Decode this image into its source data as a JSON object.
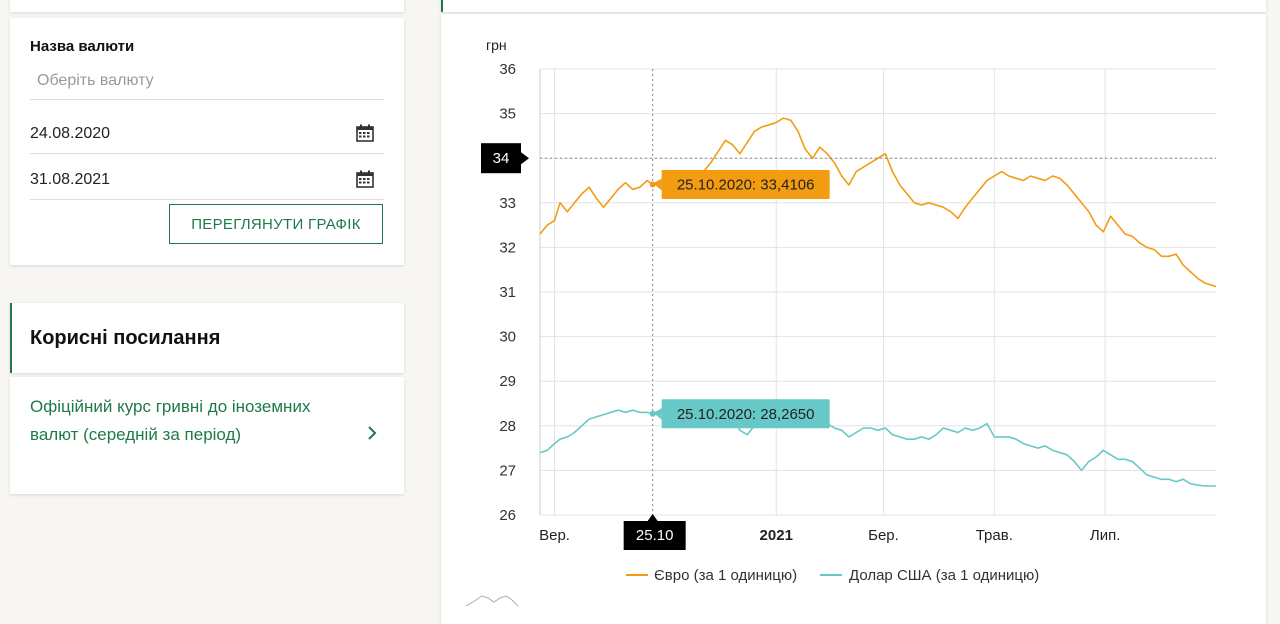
{
  "filters": {
    "currency_label": "Назва валюти",
    "currency_placeholder": "Оберіть валюту",
    "date_from": "24.08.2020",
    "date_to": "31.08.2021",
    "view_button": "ПЕРЕГЛЯНУТИ ГРАФІК"
  },
  "links": {
    "title": "Корисні посилання",
    "items": [
      {
        "label": "Офіційний курс гривні до іноземних валют (середній за період)"
      }
    ]
  },
  "colors": {
    "accent": "#1e7a4a",
    "euro": "#f39c12",
    "usd": "#67c9c7"
  },
  "chart_data": {
    "type": "line",
    "ylabel": "грн",
    "ylim": [
      26,
      36
    ],
    "yticks": [
      "26",
      "27",
      "28",
      "29",
      "30",
      "31",
      "32",
      "33",
      "34",
      "35",
      "36"
    ],
    "x_range": [
      "2020-08-24",
      "2021-08-31"
    ],
    "xticks": [
      {
        "date": "2020-09-01",
        "label": "Вер.",
        "bold": false
      },
      {
        "date": "2021-01-01",
        "label": "2021",
        "bold": true
      },
      {
        "date": "2021-03-01",
        "label": "Бер.",
        "bold": false
      },
      {
        "date": "2021-05-01",
        "label": "Трав.",
        "bold": false
      },
      {
        "date": "2021-07-01",
        "label": "Лип.",
        "bold": false
      }
    ],
    "grid": true,
    "legend_position": "bottom",
    "crosshair": {
      "date": "2020-10-25",
      "x_label": "25.10",
      "y_value": 34,
      "y_label": "34"
    },
    "tooltips": [
      {
        "series": 0,
        "text": "25.10.2020: 33,4106"
      },
      {
        "series": 1,
        "text": "25.10.2020: 28,2650"
      }
    ],
    "series": [
      {
        "name": "Євро (за 1 одиницю)",
        "color": "#f39c12",
        "points": [
          [
            "2020-08-24",
            32.3
          ],
          [
            "2020-08-28",
            32.5
          ],
          [
            "2020-09-01",
            32.6
          ],
          [
            "2020-09-04",
            33.0
          ],
          [
            "2020-09-08",
            32.8
          ],
          [
            "2020-09-12",
            33.0
          ],
          [
            "2020-09-16",
            33.2
          ],
          [
            "2020-09-20",
            33.35
          ],
          [
            "2020-09-24",
            33.1
          ],
          [
            "2020-09-28",
            32.9
          ],
          [
            "2020-10-02",
            33.1
          ],
          [
            "2020-10-06",
            33.3
          ],
          [
            "2020-10-10",
            33.45
          ],
          [
            "2020-10-14",
            33.3
          ],
          [
            "2020-10-18",
            33.35
          ],
          [
            "2020-10-22",
            33.5
          ],
          [
            "2020-10-25",
            33.41
          ],
          [
            "2020-10-29",
            33.5
          ],
          [
            "2020-11-02",
            33.55
          ],
          [
            "2020-11-06",
            33.45
          ],
          [
            "2020-11-10",
            33.35
          ],
          [
            "2020-11-14",
            33.6
          ],
          [
            "2020-11-18",
            33.65
          ],
          [
            "2020-11-22",
            33.7
          ],
          [
            "2020-11-26",
            33.9
          ],
          [
            "2020-11-30",
            34.15
          ],
          [
            "2020-12-04",
            34.4
          ],
          [
            "2020-12-08",
            34.3
          ],
          [
            "2020-12-12",
            34.1
          ],
          [
            "2020-12-16",
            34.35
          ],
          [
            "2020-12-20",
            34.6
          ],
          [
            "2020-12-24",
            34.7
          ],
          [
            "2020-12-28",
            34.75
          ],
          [
            "2021-01-01",
            34.8
          ],
          [
            "2021-01-05",
            34.9
          ],
          [
            "2021-01-09",
            34.85
          ],
          [
            "2021-01-13",
            34.6
          ],
          [
            "2021-01-17",
            34.2
          ],
          [
            "2021-01-21",
            34.0
          ],
          [
            "2021-01-25",
            34.25
          ],
          [
            "2021-01-29",
            34.1
          ],
          [
            "2021-02-02",
            33.9
          ],
          [
            "2021-02-06",
            33.6
          ],
          [
            "2021-02-10",
            33.4
          ],
          [
            "2021-02-14",
            33.7
          ],
          [
            "2021-02-18",
            33.8
          ],
          [
            "2021-02-22",
            33.9
          ],
          [
            "2021-02-26",
            34.0
          ],
          [
            "2021-03-02",
            34.1
          ],
          [
            "2021-03-06",
            33.7
          ],
          [
            "2021-03-10",
            33.4
          ],
          [
            "2021-03-14",
            33.2
          ],
          [
            "2021-03-18",
            33.0
          ],
          [
            "2021-03-22",
            32.95
          ],
          [
            "2021-03-26",
            33.0
          ],
          [
            "2021-03-30",
            32.95
          ],
          [
            "2021-04-03",
            32.9
          ],
          [
            "2021-04-07",
            32.8
          ],
          [
            "2021-04-11",
            32.65
          ],
          [
            "2021-04-15",
            32.9
          ],
          [
            "2021-04-19",
            33.1
          ],
          [
            "2021-04-23",
            33.3
          ],
          [
            "2021-04-27",
            33.5
          ],
          [
            "2021-05-01",
            33.6
          ],
          [
            "2021-05-05",
            33.7
          ],
          [
            "2021-05-09",
            33.6
          ],
          [
            "2021-05-13",
            33.55
          ],
          [
            "2021-05-17",
            33.5
          ],
          [
            "2021-05-21",
            33.6
          ],
          [
            "2021-05-25",
            33.55
          ],
          [
            "2021-05-29",
            33.5
          ],
          [
            "2021-06-02",
            33.6
          ],
          [
            "2021-06-06",
            33.55
          ],
          [
            "2021-06-10",
            33.4
          ],
          [
            "2021-06-14",
            33.2
          ],
          [
            "2021-06-18",
            33.0
          ],
          [
            "2021-06-22",
            32.8
          ],
          [
            "2021-06-26",
            32.5
          ],
          [
            "2021-06-30",
            32.35
          ],
          [
            "2021-07-04",
            32.7
          ],
          [
            "2021-07-08",
            32.5
          ],
          [
            "2021-07-12",
            32.3
          ],
          [
            "2021-07-16",
            32.25
          ],
          [
            "2021-07-20",
            32.1
          ],
          [
            "2021-07-24",
            32.0
          ],
          [
            "2021-07-28",
            31.95
          ],
          [
            "2021-08-01",
            31.8
          ],
          [
            "2021-08-05",
            31.8
          ],
          [
            "2021-08-09",
            31.85
          ],
          [
            "2021-08-13",
            31.6
          ],
          [
            "2021-08-17",
            31.45
          ],
          [
            "2021-08-21",
            31.3
          ],
          [
            "2021-08-25",
            31.2
          ],
          [
            "2021-08-31",
            31.12
          ]
        ]
      },
      {
        "name": "Долар США (за 1 одиницю)",
        "color": "#67c9c7",
        "points": [
          [
            "2020-08-24",
            27.4
          ],
          [
            "2020-08-28",
            27.45
          ],
          [
            "2020-09-01",
            27.6
          ],
          [
            "2020-09-04",
            27.7
          ],
          [
            "2020-09-08",
            27.75
          ],
          [
            "2020-09-12",
            27.85
          ],
          [
            "2020-09-16",
            28.0
          ],
          [
            "2020-09-20",
            28.15
          ],
          [
            "2020-09-24",
            28.2
          ],
          [
            "2020-09-28",
            28.25
          ],
          [
            "2020-10-02",
            28.3
          ],
          [
            "2020-10-06",
            28.35
          ],
          [
            "2020-10-10",
            28.3
          ],
          [
            "2020-10-14",
            28.35
          ],
          [
            "2020-10-18",
            28.3
          ],
          [
            "2020-10-22",
            28.3
          ],
          [
            "2020-10-25",
            28.27
          ],
          [
            "2020-10-29",
            28.35
          ],
          [
            "2020-11-02",
            28.3
          ],
          [
            "2020-11-06",
            28.15
          ],
          [
            "2020-11-10",
            28.2
          ],
          [
            "2020-11-14",
            28.15
          ],
          [
            "2020-11-18",
            28.1
          ],
          [
            "2020-11-22",
            28.05
          ],
          [
            "2020-11-26",
            28.15
          ],
          [
            "2020-11-30",
            28.1
          ],
          [
            "2020-12-04",
            28.0
          ],
          [
            "2020-12-08",
            28.2
          ],
          [
            "2020-12-12",
            27.9
          ],
          [
            "2020-12-16",
            27.8
          ],
          [
            "2020-12-20",
            28.0
          ],
          [
            "2020-12-24",
            28.2
          ],
          [
            "2020-12-28",
            28.3
          ],
          [
            "2021-01-01",
            28.25
          ],
          [
            "2021-01-05",
            28.4
          ],
          [
            "2021-01-09",
            28.3
          ],
          [
            "2021-01-13",
            28.2
          ],
          [
            "2021-01-17",
            28.25
          ],
          [
            "2021-01-21",
            28.3
          ],
          [
            "2021-01-25",
            28.2
          ],
          [
            "2021-01-29",
            28.05
          ],
          [
            "2021-02-02",
            27.95
          ],
          [
            "2021-02-06",
            27.9
          ],
          [
            "2021-02-10",
            27.75
          ],
          [
            "2021-02-14",
            27.85
          ],
          [
            "2021-02-18",
            27.95
          ],
          [
            "2021-02-22",
            27.95
          ],
          [
            "2021-02-26",
            27.9
          ],
          [
            "2021-03-02",
            27.95
          ],
          [
            "2021-03-06",
            27.8
          ],
          [
            "2021-03-10",
            27.75
          ],
          [
            "2021-03-14",
            27.7
          ],
          [
            "2021-03-18",
            27.7
          ],
          [
            "2021-03-22",
            27.75
          ],
          [
            "2021-03-26",
            27.7
          ],
          [
            "2021-03-30",
            27.8
          ],
          [
            "2021-04-03",
            27.95
          ],
          [
            "2021-04-07",
            27.9
          ],
          [
            "2021-04-11",
            27.85
          ],
          [
            "2021-04-15",
            27.95
          ],
          [
            "2021-04-19",
            27.9
          ],
          [
            "2021-04-23",
            27.95
          ],
          [
            "2021-04-27",
            28.05
          ],
          [
            "2021-05-01",
            27.75
          ],
          [
            "2021-05-05",
            27.75
          ],
          [
            "2021-05-09",
            27.75
          ],
          [
            "2021-05-13",
            27.7
          ],
          [
            "2021-05-17",
            27.6
          ],
          [
            "2021-05-21",
            27.55
          ],
          [
            "2021-05-25",
            27.5
          ],
          [
            "2021-05-29",
            27.55
          ],
          [
            "2021-06-02",
            27.45
          ],
          [
            "2021-06-06",
            27.4
          ],
          [
            "2021-06-10",
            27.35
          ],
          [
            "2021-06-14",
            27.2
          ],
          [
            "2021-06-18",
            27.0
          ],
          [
            "2021-06-22",
            27.2
          ],
          [
            "2021-06-26",
            27.3
          ],
          [
            "2021-06-30",
            27.45
          ],
          [
            "2021-07-04",
            27.35
          ],
          [
            "2021-07-08",
            27.25
          ],
          [
            "2021-07-12",
            27.25
          ],
          [
            "2021-07-16",
            27.2
          ],
          [
            "2021-07-20",
            27.05
          ],
          [
            "2021-07-24",
            26.9
          ],
          [
            "2021-07-28",
            26.85
          ],
          [
            "2021-08-01",
            26.8
          ],
          [
            "2021-08-05",
            26.8
          ],
          [
            "2021-08-09",
            26.75
          ],
          [
            "2021-08-13",
            26.8
          ],
          [
            "2021-08-17",
            26.7
          ],
          [
            "2021-08-21",
            26.67
          ],
          [
            "2021-08-25",
            26.65
          ],
          [
            "2021-08-31",
            26.65
          ]
        ]
      }
    ]
  }
}
